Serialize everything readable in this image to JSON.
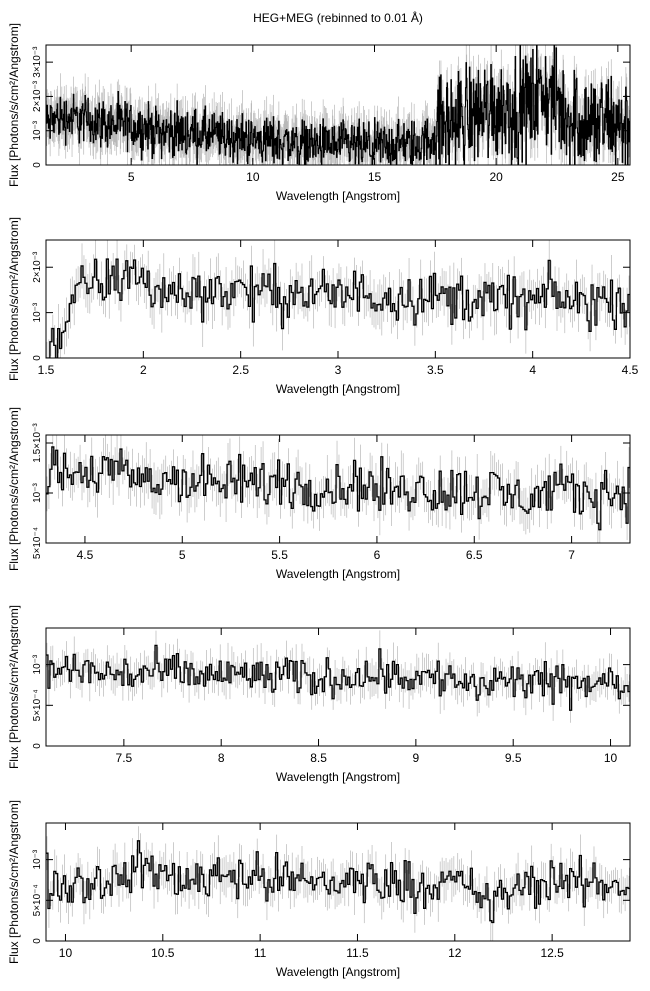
{
  "figure": {
    "title": "HEG+MEG (rebinned to 0.01 Å)"
  },
  "chart_data": [
    {
      "type": "line",
      "xlabel": "Wavelength [Angstrom]",
      "ylabel": "Flux [Photons/s/cm²/Angstrom]",
      "xlim": [
        1.5,
        25.5
      ],
      "ylim": [
        0,
        0.0035
      ],
      "xticks": [
        5,
        10,
        15,
        20,
        25
      ],
      "yticks": [
        0,
        0.001,
        0.002,
        0.003
      ],
      "ytick_labels": [
        "0",
        "10⁻³",
        "2×10⁻³",
        "3×10⁻³"
      ],
      "series": [
        {
          "x": [
            1.6,
            2.0,
            3.0,
            4.0,
            5.0,
            6.0,
            7.0,
            8.0,
            9.0,
            10.0,
            11.0,
            12.0,
            13.0,
            14.0,
            15.0,
            16.0,
            17.0,
            17.5,
            18.0,
            19.0,
            20.0,
            21.0,
            22.0,
            23.0,
            24.0,
            25.0,
            25.5
          ],
          "y": [
            0.0012,
            0.0014,
            0.00135,
            0.0012,
            0.00115,
            0.001,
            0.00095,
            0.0009,
            0.0008,
            0.00075,
            0.0007,
            0.00062,
            0.00058,
            0.00055,
            0.0005,
            0.0006,
            0.0006,
            0.0009,
            0.0012,
            0.0015,
            0.0017,
            0.0016,
            0.0021,
            0.0014,
            0.0012,
            0.0012,
            0.0011
          ]
        }
      ]
    },
    {
      "type": "line",
      "xlabel": "Wavelength [Angstrom]",
      "ylabel": "Flux [Photons/s/cm²/Angstrom]",
      "xlim": [
        1.5,
        4.5
      ],
      "ylim": [
        0,
        0.0026
      ],
      "xticks": [
        1.5,
        2,
        2.5,
        3,
        3.5,
        4,
        4.5
      ],
      "yticks": [
        0,
        0.001,
        0.002
      ],
      "ytick_labels": [
        "0",
        "10⁻³",
        "2×10⁻³"
      ],
      "series": [
        {
          "x": [
            1.5,
            1.55,
            1.6,
            1.65,
            1.7,
            1.8,
            1.9,
            1.95,
            2.0,
            2.1,
            2.2,
            2.3,
            2.5,
            2.7,
            3.0,
            3.3,
            3.5,
            3.7,
            4.0,
            4.1,
            4.2,
            4.3,
            4.5
          ],
          "y": [
            0.0002,
            0.0003,
            0.0008,
            0.0012,
            0.0017,
            0.0016,
            0.0018,
            0.0019,
            0.0016,
            0.0015,
            0.0014,
            0.0015,
            0.0015,
            0.0014,
            0.0014,
            0.0014,
            0.00135,
            0.0013,
            0.00125,
            0.0014,
            0.0012,
            0.00125,
            0.00125
          ]
        }
      ]
    },
    {
      "type": "line",
      "xlabel": "Wavelength [Angstrom]",
      "ylabel": "Flux [Photons/s/cm²/Angstrom]",
      "xlim": [
        4.3,
        7.3
      ],
      "ylim": [
        0.0005,
        0.00158
      ],
      "xticks": [
        4.5,
        5,
        5.5,
        6,
        6.5,
        7
      ],
      "yticks": [
        0.0005,
        0.001,
        0.0015
      ],
      "ytick_labels": [
        "5×10⁻⁴",
        "10⁻³",
        "1.5×10⁻³"
      ],
      "series": [
        {
          "x": [
            4.3,
            4.4,
            4.5,
            4.6,
            4.7,
            4.8,
            5.0,
            5.2,
            5.4,
            5.5,
            5.7,
            5.9,
            6.0,
            6.2,
            6.4,
            6.6,
            6.7,
            6.9,
            7.1,
            7.3
          ],
          "y": [
            0.00115,
            0.0012,
            0.00118,
            0.00125,
            0.00116,
            0.00112,
            0.00114,
            0.00108,
            0.0011,
            0.00112,
            0.00106,
            0.00108,
            0.00103,
            0.00105,
            0.00102,
            0.00102,
            0.00095,
            0.00101,
            0.00098,
            0.00102
          ]
        }
      ]
    },
    {
      "type": "line",
      "xlabel": "Wavelength [Angstrom]",
      "ylabel": "Flux [Photons/s/cm²/Angstrom]",
      "xlim": [
        7.1,
        10.1
      ],
      "ylim": [
        0,
        0.00145
      ],
      "xticks": [
        7.5,
        8,
        8.5,
        9,
        9.5,
        10
      ],
      "yticks": [
        0,
        0.0005,
        0.001
      ],
      "ytick_labels": [
        "0",
        "5×10⁻⁴",
        "10⁻³"
      ],
      "series": [
        {
          "x": [
            7.1,
            7.3,
            7.5,
            7.7,
            7.9,
            8.1,
            8.3,
            8.5,
            8.7,
            8.85,
            9.0,
            9.2,
            9.3,
            9.5,
            9.7,
            9.9,
            10.1
          ],
          "y": [
            0.00095,
            0.00092,
            0.00088,
            0.0009,
            0.00086,
            0.00088,
            0.00085,
            0.00082,
            0.00088,
            0.0009,
            0.00084,
            0.00082,
            0.00072,
            0.0008,
            0.00075,
            0.00078,
            0.00075
          ]
        }
      ]
    },
    {
      "type": "line",
      "xlabel": "Wavelength [Angstrom]",
      "ylabel": "Flux [Photons/s/cm²/Angstrom]",
      "xlim": [
        9.9,
        12.9
      ],
      "ylim": [
        0,
        0.00145
      ],
      "xticks": [
        10,
        10.5,
        11,
        11.5,
        12,
        12.5
      ],
      "yticks": [
        0,
        0.0005,
        0.001
      ],
      "ytick_labels": [
        "0",
        "5×10⁻⁴",
        "10⁻³"
      ],
      "series": [
        {
          "x": [
            9.9,
            10.1,
            10.3,
            10.4,
            10.5,
            10.7,
            10.8,
            11.0,
            11.2,
            11.4,
            11.6,
            11.8,
            12.0,
            12.2,
            12.3,
            12.5,
            12.7,
            12.9
          ],
          "y": [
            0.00075,
            0.00072,
            0.00078,
            0.00092,
            0.0008,
            0.00075,
            0.00088,
            0.00076,
            0.00074,
            0.00072,
            0.00075,
            0.0007,
            0.00072,
            0.00045,
            0.00065,
            0.00072,
            0.0007,
            0.00068
          ]
        }
      ]
    }
  ]
}
